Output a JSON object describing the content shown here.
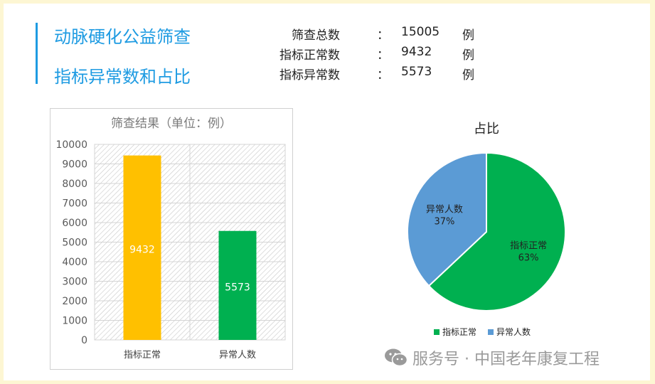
{
  "header": {
    "title_line1": "动脉硬化公益筛查",
    "title_line2": "指标异常数和占比"
  },
  "stats": [
    {
      "label": "筛查总数",
      "colon": "：",
      "value": "15005",
      "unit": "例"
    },
    {
      "label": "指标正常数",
      "colon": "：",
      "value": "9432",
      "unit": "例"
    },
    {
      "label": "指标异常数",
      "colon": "：",
      "value": "5573",
      "unit": "例"
    }
  ],
  "colors": {
    "accent": "#1e9be2",
    "normal_bar": "#ffc000",
    "abnormal_bar": "#00b050",
    "pie_normal": "#00b050",
    "pie_abnormal": "#5b9bd5"
  },
  "chart_data": [
    {
      "type": "bar",
      "title": "筛查结果（单位：例）",
      "categories": [
        "指标正常",
        "异常人数"
      ],
      "values": [
        9432,
        5573
      ],
      "data_labels": [
        "9432",
        "5573"
      ],
      "ylim": [
        0,
        10000
      ],
      "yticks": [
        "0",
        "1000",
        "2000",
        "3000",
        "4000",
        "5000",
        "6000",
        "7000",
        "8000",
        "9000",
        "10000"
      ],
      "grid": true
    },
    {
      "type": "pie",
      "title": "占比",
      "slices": [
        {
          "label": "指标正常",
          "pct_label": "63%",
          "value": 0.63
        },
        {
          "label": "异常人数",
          "pct_label": "37%",
          "value": 0.37
        }
      ],
      "legend": [
        "指标正常",
        "异常人数"
      ],
      "legend_position": "bottom"
    }
  ],
  "watermark": {
    "icon": "wechat-icon",
    "text": "服务号 · 中国老年康复工程"
  }
}
